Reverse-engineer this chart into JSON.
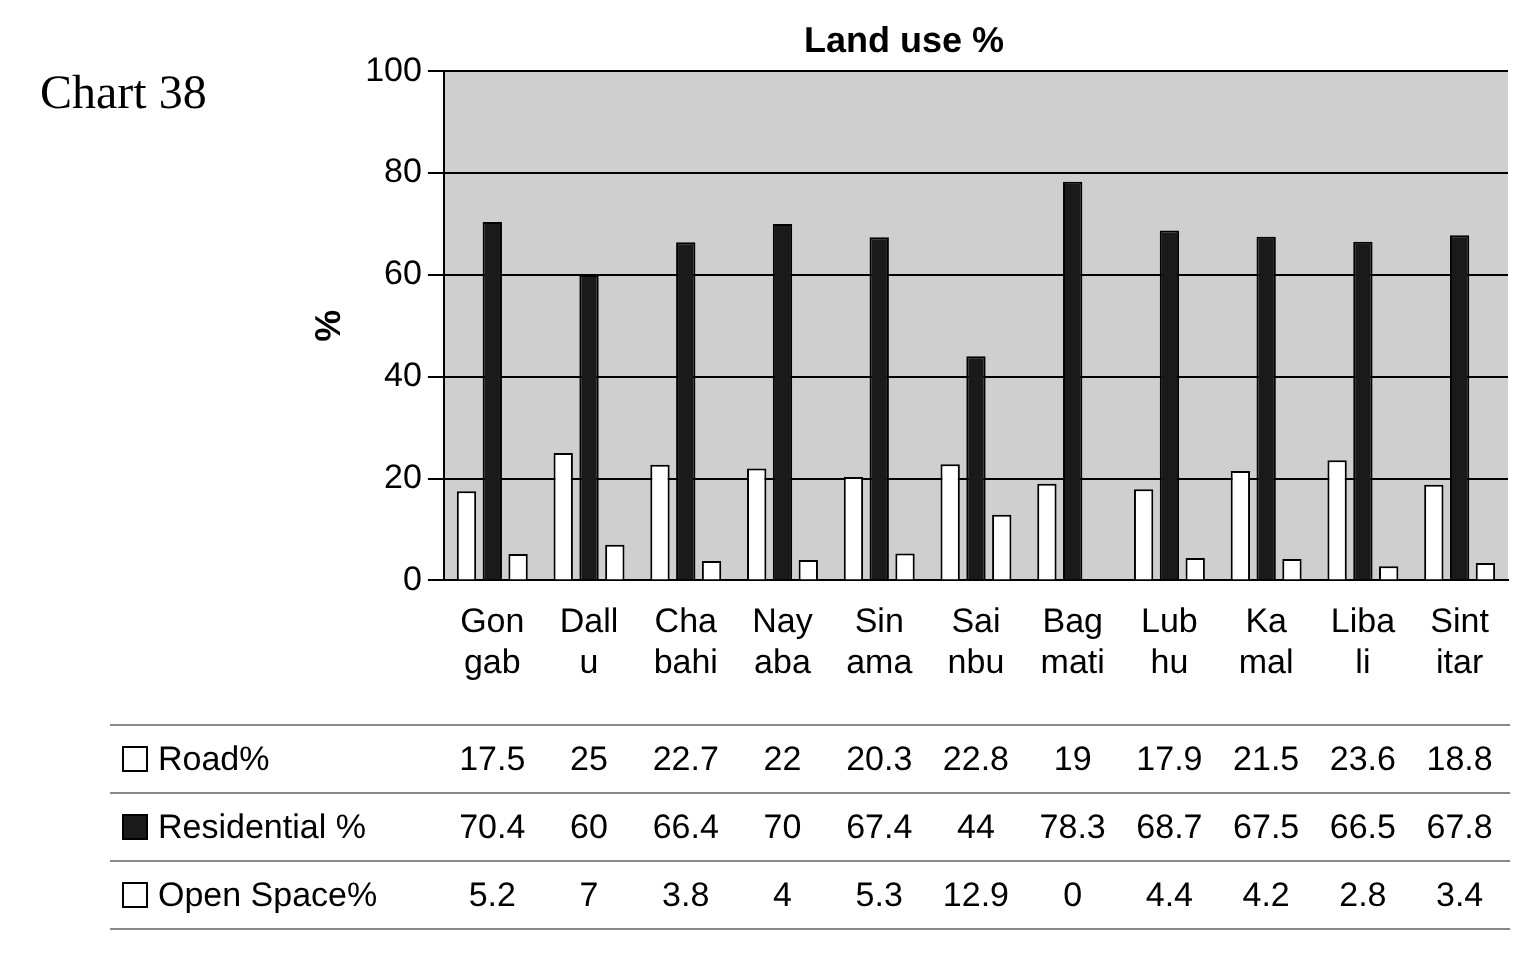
{
  "chart_data": {
    "type": "bar",
    "title": "Land use %",
    "ylabel": "%",
    "annotations": [
      "Chart 38"
    ],
    "categories": [
      "Gon gab",
      "Dall u",
      "Cha bahi",
      "Nay aba",
      "Sin ama",
      "Sai nbu",
      "Bag mati",
      "Lub hu",
      "Ka mal",
      "Liba li",
      "Sint itar"
    ],
    "series": [
      {
        "name": "Road%",
        "color": "#ffffff",
        "values": [
          17.5,
          25,
          22.7,
          22,
          20.3,
          22.8,
          19,
          17.9,
          21.5,
          23.6,
          18.8
        ]
      },
      {
        "name": "Residential %",
        "color": "#1a1a1a",
        "values": [
          70.4,
          60,
          66.4,
          70,
          67.4,
          44,
          78.3,
          68.7,
          67.5,
          66.5,
          67.8
        ]
      },
      {
        "name": "Open Space%",
        "color": "#ffffff",
        "values": [
          5.2,
          7,
          3.8,
          4,
          5.3,
          12.9,
          0,
          4.4,
          4.2,
          2.8,
          3.4
        ]
      }
    ],
    "ylim": [
      0,
      100
    ],
    "yticks": [
      0,
      20,
      40,
      60,
      80,
      100
    ],
    "grid": "y",
    "legend": "bottom",
    "data_labels": true
  }
}
